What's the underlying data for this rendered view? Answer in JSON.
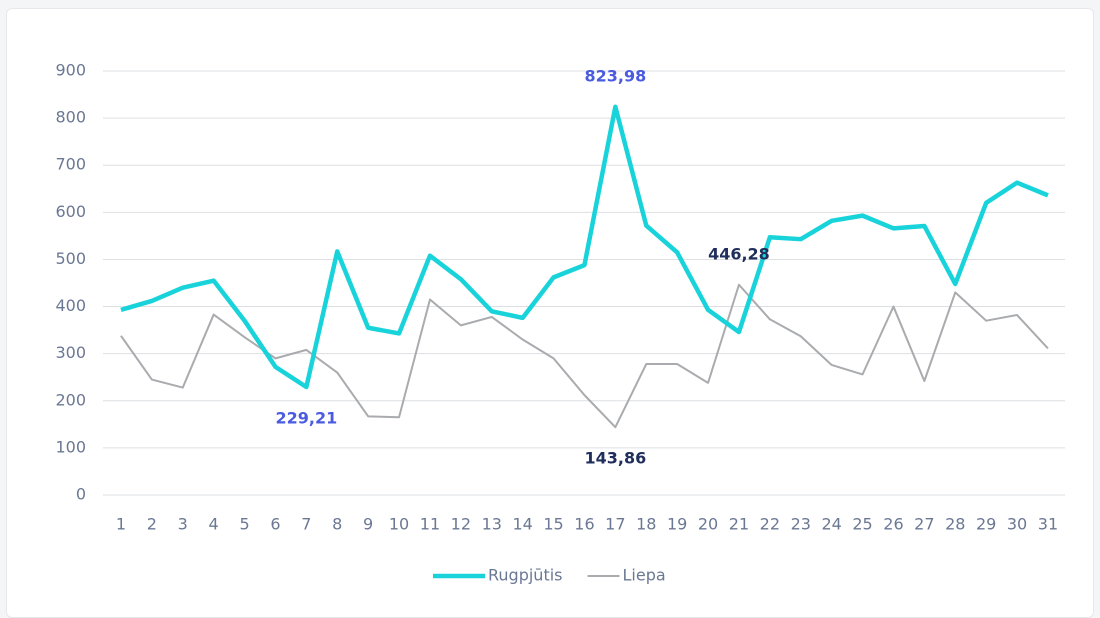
{
  "chart_data": {
    "type": "line",
    "categories": [
      "1",
      "2",
      "3",
      "4",
      "5",
      "6",
      "7",
      "8",
      "9",
      "10",
      "11",
      "12",
      "13",
      "14",
      "15",
      "16",
      "17",
      "18",
      "19",
      "20",
      "21",
      "22",
      "23",
      "24",
      "25",
      "26",
      "27",
      "28",
      "29",
      "30",
      "31"
    ],
    "series": [
      {
        "name": "Rugpjūtis",
        "color": "#19d3da",
        "label_color": "#4a5be0",
        "values": [
          393,
          412,
          440,
          455,
          370,
          272,
          229.21,
          517,
          355,
          343,
          508,
          458,
          390,
          376,
          462,
          488,
          823.98,
          572,
          515,
          393,
          346,
          547,
          543,
          582,
          593,
          566,
          571,
          448,
          620,
          663,
          636
        ],
        "value_labels": [
          null,
          null,
          null,
          null,
          null,
          null,
          "229,21",
          null,
          null,
          null,
          null,
          null,
          null,
          null,
          null,
          null,
          "823,98",
          null,
          null,
          null,
          null,
          null,
          null,
          null,
          null,
          null,
          null,
          null,
          null,
          null,
          null
        ]
      },
      {
        "name": "Liepa",
        "color": "#a9abae",
        "label_color": "#1f2e5c",
        "values": [
          338,
          245,
          228,
          383,
          335,
          290,
          308,
          260,
          167,
          165,
          415,
          360,
          378,
          330,
          290,
          212,
          143.86,
          278,
          278,
          238,
          446.28,
          373,
          337,
          276,
          256,
          400,
          242,
          430,
          370,
          382,
          311
        ],
        "value_labels": [
          null,
          null,
          null,
          null,
          null,
          null,
          null,
          null,
          null,
          null,
          null,
          null,
          null,
          null,
          null,
          null,
          "143,86",
          null,
          null,
          null,
          "446,28",
          null,
          null,
          null,
          null,
          null,
          null,
          null,
          null,
          null,
          null
        ]
      }
    ],
    "ylim": [
      0,
      900
    ],
    "yticks": [
      0,
      100,
      200,
      300,
      400,
      500,
      600,
      700,
      800,
      900
    ],
    "grid": true
  }
}
